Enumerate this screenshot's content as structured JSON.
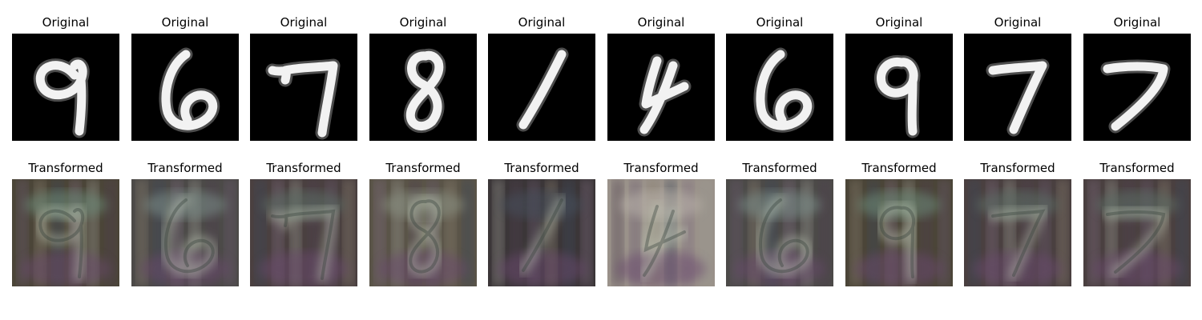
{
  "original_title": "Original",
  "transformed_title": "Transformed",
  "panels": [
    {
      "digit": "9",
      "tint": "#6d8c7a",
      "bg": "#4b4538"
    },
    {
      "digit": "6",
      "tint": "#7c8e8a",
      "bg": "#4c4a48"
    },
    {
      "digit": "7",
      "tint": "#5d6f68",
      "bg": "#4a4040"
    },
    {
      "digit": "8",
      "tint": "#8b9384",
      "bg": "#5a5448"
    },
    {
      "digit": "1",
      "tint": "#46505c",
      "bg": "#3b3638"
    },
    {
      "digit": "4",
      "tint": "#b9b2aa",
      "bg": "#9a928a"
    },
    {
      "digit": "6",
      "tint": "#7c8e8a",
      "bg": "#4c4a48"
    },
    {
      "digit": "9",
      "tint": "#6d8c7a",
      "bg": "#4b4538"
    },
    {
      "digit": "7",
      "tint": "#5d6f68",
      "bg": "#4a4040"
    },
    {
      "digit": "7",
      "tint": "#5d6f68",
      "bg": "#4a4040"
    }
  ]
}
